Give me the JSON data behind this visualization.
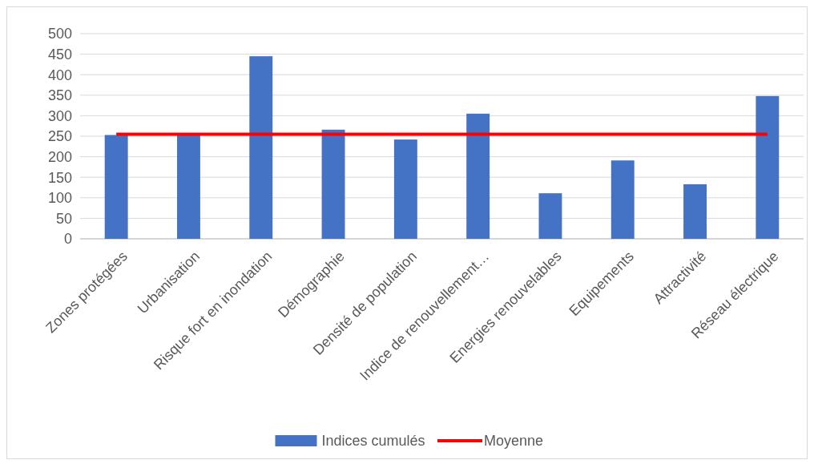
{
  "chart_data": {
    "type": "bar",
    "categories": [
      "Zones protégées",
      "Urbanisation",
      "Risque fort en inondation",
      "Démographie",
      "Densité de population",
      "Indice de renouvellement…",
      "Energies renouvelables",
      "Equipements",
      "Attractivité",
      "Réseau électrique"
    ],
    "series": [
      {
        "name": "Indices cumulés",
        "color": "#4472c4",
        "values": [
          253,
          255,
          445,
          266,
          242,
          305,
          111,
          191,
          133,
          348
        ]
      },
      {
        "name": "Moyenne",
        "type": "line",
        "color": "#ff0000",
        "values": [
          255,
          255,
          255,
          255,
          255,
          255,
          255,
          255,
          255,
          255
        ]
      }
    ],
    "ylim": [
      0,
      500
    ],
    "yticks": [
      0,
      50,
      100,
      150,
      200,
      250,
      300,
      350,
      400,
      450,
      500
    ],
    "grid": "y",
    "legend": "bottom",
    "marker": "none"
  }
}
